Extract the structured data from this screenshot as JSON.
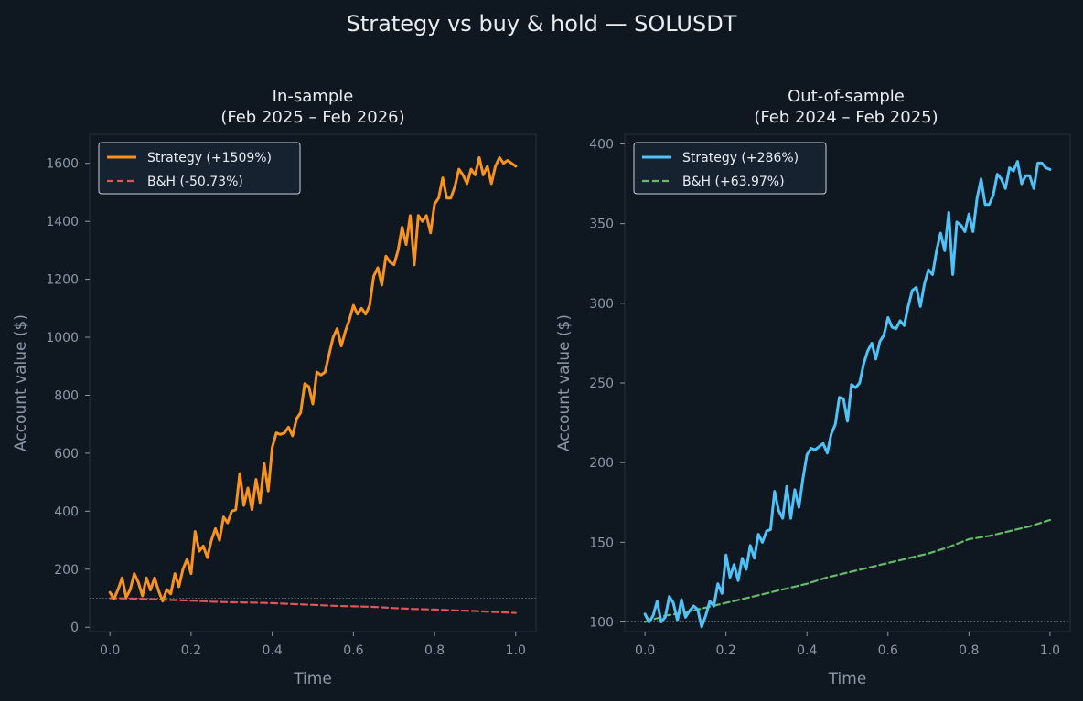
{
  "colors": {
    "background": "#0f1720",
    "panel_border": "#253241",
    "text": "#e8edf2",
    "muted": "#8a98a8",
    "strategy_in": "#f7931e",
    "bh_in": "#e05555",
    "strategy_out": "#4fc3f7",
    "bh_out": "#66bb6a"
  },
  "suptitle": "Strategy vs buy & hold — SOLUSDT",
  "chart_data": [
    {
      "type": "line",
      "title": [
        "In-sample",
        "(Feb 2025 – Feb 2026)"
      ],
      "xlabel": "Time",
      "ylabel": "Account value ($)",
      "xlim": [
        -0.05,
        1.05
      ],
      "ylim": [
        -15,
        1700
      ],
      "xticks": [
        0.0,
        0.2,
        0.4,
        0.6,
        0.8,
        1.0
      ],
      "xtick_labels": [
        "0.0",
        "0.2",
        "0.4",
        "0.6",
        "0.8",
        "1.0"
      ],
      "yticks": [
        0,
        200,
        400,
        600,
        800,
        1000,
        1200,
        1400,
        1600
      ],
      "ytick_labels": [
        "0",
        "200",
        "400",
        "600",
        "800",
        "1000",
        "1200",
        "1400",
        "1600"
      ],
      "reference_line": 100,
      "legend_position": "top-left",
      "series": [
        {
          "name": "Strategy (+1509%)",
          "style": "solid",
          "color_key": "strategy_in",
          "x": [
            0.0,
            0.01,
            0.02,
            0.03,
            0.04,
            0.05,
            0.06,
            0.07,
            0.08,
            0.09,
            0.1,
            0.11,
            0.12,
            0.13,
            0.14,
            0.15,
            0.16,
            0.17,
            0.18,
            0.19,
            0.2,
            0.21,
            0.22,
            0.23,
            0.24,
            0.25,
            0.26,
            0.27,
            0.28,
            0.29,
            0.3,
            0.31,
            0.32,
            0.33,
            0.34,
            0.35,
            0.36,
            0.37,
            0.38,
            0.39,
            0.4,
            0.41,
            0.42,
            0.43,
            0.44,
            0.45,
            0.46,
            0.47,
            0.48,
            0.49,
            0.5,
            0.51,
            0.52,
            0.53,
            0.54,
            0.55,
            0.56,
            0.57,
            0.58,
            0.59,
            0.6,
            0.61,
            0.62,
            0.63,
            0.64,
            0.65,
            0.66,
            0.67,
            0.68,
            0.69,
            0.7,
            0.71,
            0.72,
            0.73,
            0.74,
            0.75,
            0.76,
            0.77,
            0.78,
            0.79,
            0.8,
            0.81,
            0.82,
            0.83,
            0.84,
            0.85,
            0.86,
            0.87,
            0.88,
            0.89,
            0.9,
            0.91,
            0.92,
            0.93,
            0.94,
            0.95,
            0.96,
            0.97,
            0.98,
            0.99,
            1.0
          ],
          "y": [
            120,
            98,
            130,
            170,
            103,
            130,
            185,
            155,
            108,
            170,
            128,
            170,
            125,
            90,
            130,
            115,
            185,
            140,
            200,
            235,
            185,
            330,
            262,
            280,
            240,
            300,
            340,
            300,
            380,
            360,
            400,
            405,
            530,
            420,
            480,
            405,
            510,
            430,
            565,
            470,
            620,
            670,
            665,
            670,
            690,
            660,
            720,
            740,
            840,
            830,
            770,
            880,
            870,
            880,
            940,
            1000,
            1030,
            970,
            1020,
            1060,
            1110,
            1080,
            1100,
            1080,
            1110,
            1210,
            1240,
            1180,
            1280,
            1260,
            1250,
            1300,
            1380,
            1320,
            1420,
            1250,
            1420,
            1400,
            1420,
            1360,
            1460,
            1480,
            1550,
            1480,
            1480,
            1520,
            1580,
            1560,
            1530,
            1580,
            1560,
            1620,
            1560,
            1590,
            1530,
            1590,
            1620,
            1600,
            1610,
            1600,
            1590
          ]
        },
        {
          "name": "B&H (-50.73%)",
          "style": "dashed",
          "color_key": "bh_in",
          "x": [
            0.0,
            0.05,
            0.1,
            0.15,
            0.2,
            0.25,
            0.3,
            0.35,
            0.4,
            0.45,
            0.5,
            0.55,
            0.6,
            0.65,
            0.7,
            0.75,
            0.8,
            0.85,
            0.9,
            0.95,
            1.0
          ],
          "y": [
            100,
            99,
            97,
            94,
            92,
            88,
            86,
            85,
            83,
            80,
            77,
            74,
            72,
            70,
            66,
            63,
            61,
            58,
            56,
            52,
            49.27
          ]
        }
      ]
    },
    {
      "type": "line",
      "title": [
        "Out-of-sample",
        "(Feb 2024 – Feb 2025)"
      ],
      "xlabel": "Time",
      "ylabel": "Account value ($)",
      "xlim": [
        -0.05,
        1.05
      ],
      "ylim": [
        94,
        406
      ],
      "xticks": [
        0.0,
        0.2,
        0.4,
        0.6,
        0.8,
        1.0
      ],
      "xtick_labels": [
        "0.0",
        "0.2",
        "0.4",
        "0.6",
        "0.8",
        "1.0"
      ],
      "yticks": [
        100,
        150,
        200,
        250,
        300,
        350,
        400
      ],
      "ytick_labels": [
        "100",
        "150",
        "200",
        "250",
        "300",
        "350",
        "400"
      ],
      "reference_line": 100,
      "legend_position": "top-left",
      "series": [
        {
          "name": "Strategy (+286%)",
          "style": "solid",
          "color_key": "strategy_out",
          "x": [
            0.0,
            0.01,
            0.02,
            0.03,
            0.04,
            0.05,
            0.06,
            0.07,
            0.08,
            0.09,
            0.1,
            0.11,
            0.12,
            0.13,
            0.14,
            0.15,
            0.16,
            0.17,
            0.18,
            0.19,
            0.2,
            0.21,
            0.22,
            0.23,
            0.24,
            0.25,
            0.26,
            0.27,
            0.28,
            0.29,
            0.3,
            0.31,
            0.32,
            0.33,
            0.34,
            0.35,
            0.36,
            0.37,
            0.38,
            0.39,
            0.4,
            0.41,
            0.42,
            0.43,
            0.44,
            0.45,
            0.46,
            0.47,
            0.48,
            0.49,
            0.5,
            0.51,
            0.52,
            0.53,
            0.54,
            0.55,
            0.56,
            0.57,
            0.58,
            0.59,
            0.6,
            0.61,
            0.62,
            0.63,
            0.64,
            0.65,
            0.66,
            0.67,
            0.68,
            0.69,
            0.7,
            0.71,
            0.72,
            0.73,
            0.74,
            0.75,
            0.76,
            0.77,
            0.78,
            0.79,
            0.8,
            0.81,
            0.82,
            0.83,
            0.84,
            0.85,
            0.86,
            0.87,
            0.88,
            0.89,
            0.9,
            0.91,
            0.92,
            0.93,
            0.94,
            0.95,
            0.96,
            0.97,
            0.98,
            0.99,
            1.0
          ],
          "y": [
            105,
            100,
            104,
            113,
            100,
            103,
            116,
            112,
            101,
            114,
            103,
            107,
            110,
            108,
            97,
            104,
            113,
            110,
            124,
            118,
            142,
            128,
            136,
            126,
            140,
            133,
            148,
            140,
            155,
            150,
            157,
            158,
            182,
            170,
            165,
            185,
            165,
            183,
            172,
            190,
            205,
            209,
            208,
            210,
            212,
            206,
            218,
            224,
            241,
            240,
            226,
            249,
            247,
            250,
            262,
            270,
            275,
            265,
            276,
            280,
            291,
            285,
            284,
            289,
            286,
            298,
            308,
            310,
            298,
            312,
            321,
            318,
            333,
            344,
            333,
            357,
            318,
            351,
            349,
            345,
            356,
            345,
            366,
            378,
            362,
            362,
            368,
            381,
            378,
            372,
            385,
            383,
            389,
            375,
            380,
            380,
            372,
            388,
            388,
            385,
            384
          ]
        },
        {
          "name": "B&H (+63.97%)",
          "style": "dashed",
          "color_key": "bh_out",
          "x": [
            0.0,
            0.05,
            0.1,
            0.15,
            0.2,
            0.25,
            0.3,
            0.35,
            0.4,
            0.45,
            0.5,
            0.55,
            0.6,
            0.65,
            0.7,
            0.75,
            0.8,
            0.85,
            0.9,
            0.95,
            1.0
          ],
          "y": [
            100,
            104,
            106,
            109,
            112,
            115,
            118,
            121,
            124,
            128,
            131,
            134,
            137,
            140,
            143,
            147,
            152,
            154,
            157,
            160,
            163.97
          ]
        }
      ]
    }
  ]
}
